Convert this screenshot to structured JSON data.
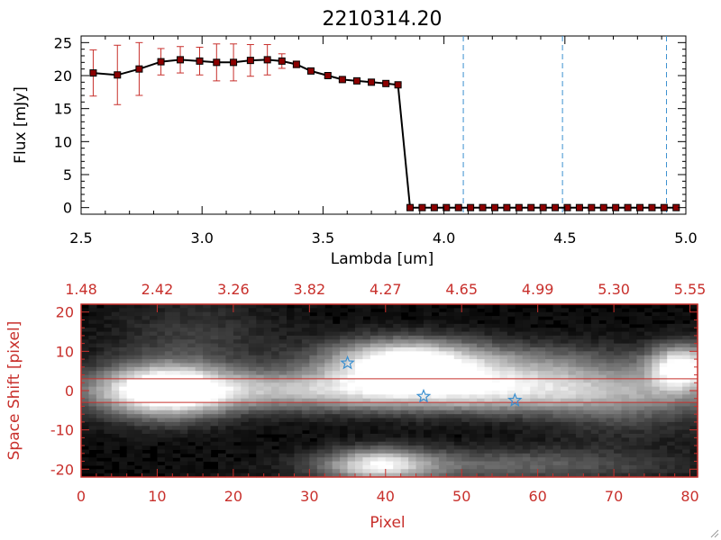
{
  "window": {
    "resize_grip_icon": "resize-grip-icon"
  },
  "chart_data": [
    {
      "type": "line",
      "title": "2210314.20",
      "xlabel": "Lambda [um]",
      "ylabel": "Flux [mJy]",
      "xlim": [
        2.5,
        5.0
      ],
      "ylim": [
        -1,
        26
      ],
      "x_ticks": [
        "2.5",
        "3.0",
        "3.5",
        "4.0",
        "4.5",
        "5.0"
      ],
      "y_ticks": [
        "0",
        "5",
        "10",
        "15",
        "20",
        "25"
      ],
      "x_tick_values": [
        2.5,
        3.0,
        3.5,
        4.0,
        4.5,
        5.0
      ],
      "y_tick_values": [
        0,
        5,
        10,
        15,
        20,
        25
      ],
      "grid": false,
      "line_color": "#000000",
      "marker_color": "#8b0000",
      "errorbar_color": "#c8302c",
      "vline_color": "#3a8fd0",
      "vlines": [
        4.08,
        4.49,
        4.92
      ],
      "series": [
        {
          "x": [
            2.55,
            2.65,
            2.74,
            2.83,
            2.91,
            2.99,
            3.06,
            3.13,
            3.2,
            3.27,
            3.33,
            3.39,
            3.45,
            3.52,
            3.58,
            3.64,
            3.7,
            3.76,
            3.81,
            3.86,
            3.91,
            3.96,
            4.01,
            4.06,
            4.11,
            4.16,
            4.21,
            4.26,
            4.31,
            4.36,
            4.41,
            4.46,
            4.51,
            4.56,
            4.61,
            4.66,
            4.71,
            4.76,
            4.81,
            4.86,
            4.91,
            4.96
          ],
          "y": [
            20.4,
            20.1,
            21.0,
            22.1,
            22.4,
            22.2,
            22.0,
            22.0,
            22.3,
            22.4,
            22.2,
            21.7,
            20.7,
            20.0,
            19.4,
            19.2,
            19.0,
            18.8,
            18.6,
            0,
            0,
            0,
            0,
            0,
            0,
            0,
            0,
            0,
            0,
            0,
            0,
            0,
            0,
            0,
            0,
            0,
            0,
            0,
            0,
            0,
            0,
            0
          ],
          "err": [
            3.5,
            4.5,
            4.0,
            2.0,
            2.0,
            2.1,
            2.8,
            2.8,
            2.4,
            2.3,
            1.1,
            0.5,
            0.4,
            0.3,
            0.3,
            0.2,
            0.2,
            0.2,
            0.2,
            0,
            0,
            0,
            0,
            0,
            0,
            0,
            0,
            0,
            0,
            0,
            0,
            0,
            0,
            0,
            0,
            0,
            0,
            0,
            0,
            0,
            0,
            0
          ]
        }
      ]
    },
    {
      "type": "heatmap",
      "xlabel": "Pixel",
      "ylabel": "Space Shift [pixel]",
      "xlim": [
        0,
        81
      ],
      "ylim": [
        -22,
        22
      ],
      "x_ticks": [
        "0",
        "10",
        "20",
        "30",
        "40",
        "50",
        "60",
        "70",
        "80"
      ],
      "x_tick_values": [
        0,
        10,
        20,
        30,
        40,
        50,
        60,
        70,
        80
      ],
      "y_ticks": [
        "-20",
        "-10",
        "0",
        "10",
        "20"
      ],
      "y_tick_values": [
        -20,
        -10,
        0,
        10,
        20
      ],
      "top_axis_ticks": [
        "1.48",
        "2.42",
        "3.26",
        "3.82",
        "4.27",
        "4.65",
        "4.99",
        "5.30",
        "5.55"
      ],
      "colormap": "grayscale",
      "axis_color": "#c8302c",
      "hline_color": "#c8302c",
      "hlines": [
        3,
        -3
      ],
      "star_color": "#3a8fd0",
      "stars": [
        {
          "x": 35,
          "y": 7
        },
        {
          "x": 45,
          "y": -1.5
        },
        {
          "x": 57,
          "y": -2.5
        }
      ],
      "bright_features": [
        {
          "x": 11,
          "y": 0,
          "sx": 6,
          "sy": 5,
          "amp": 1.0
        },
        {
          "x": 31,
          "y": 0,
          "sx": 22,
          "sy": 3.5,
          "amp": 0.55
        },
        {
          "x": 57,
          "y": -0.5,
          "sx": 18,
          "sy": 4,
          "amp": 0.5
        },
        {
          "x": 42,
          "y": 7.5,
          "sx": 7,
          "sy": 4,
          "amp": 0.85
        },
        {
          "x": 55,
          "y": 6.5,
          "sx": 14,
          "sy": 4,
          "amp": 0.45
        },
        {
          "x": 79,
          "y": 6,
          "sx": 3,
          "sy": 4,
          "amp": 0.95
        },
        {
          "x": 39,
          "y": -19,
          "sx": 5,
          "sy": 3,
          "amp": 0.75
        },
        {
          "x": 55,
          "y": -19,
          "sx": 16,
          "sy": 3,
          "amp": 0.35
        },
        {
          "x": 15,
          "y": 14,
          "sx": 8,
          "sy": 7,
          "amp": 0.18
        },
        {
          "x": 72,
          "y": -5,
          "sx": 8,
          "sy": 6,
          "amp": 0.2
        }
      ]
    }
  ]
}
